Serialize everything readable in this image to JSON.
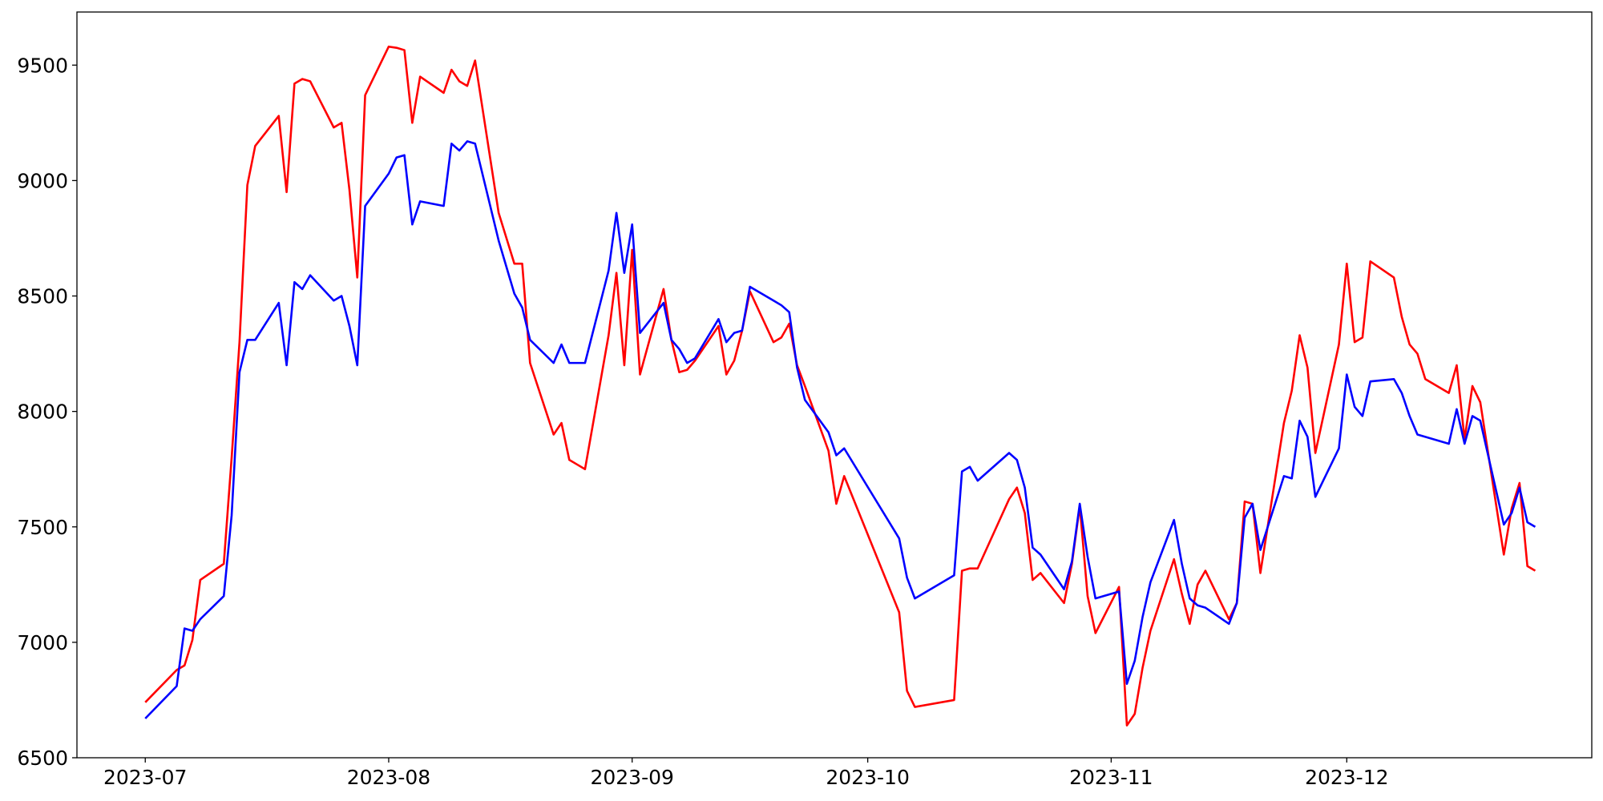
{
  "chart_data": {
    "type": "line",
    "x": [
      19539,
      19543,
      19544,
      19545,
      19546,
      19549,
      19550,
      19551,
      19552,
      19553,
      19556,
      19557,
      19558,
      19559,
      19560,
      19563,
      19564,
      19565,
      19566,
      19567,
      19570,
      19571,
      19572,
      19573,
      19574,
      19577,
      19578,
      19579,
      19580,
      19581,
      19584,
      19586,
      19587,
      19588,
      19591,
      19592,
      19593,
      19594,
      19595,
      19598,
      19599,
      19600,
      19601,
      19602,
      19605,
      19606,
      19607,
      19608,
      19609,
      19612,
      19613,
      19614,
      19615,
      19616,
      19619,
      19620,
      19621,
      19622,
      19623,
      19626,
      19627,
      19628,
      19635,
      19636,
      19637,
      19642,
      19643,
      19644,
      19645,
      19649,
      19650,
      19651,
      19652,
      19653,
      19656,
      19657,
      19658,
      19659,
      19660,
      19663,
      19664,
      19665,
      19666,
      19667,
      19670,
      19671,
      19672,
      19673,
      19674,
      19677,
      19678,
      19679,
      19680,
      19681,
      19684,
      19685,
      19686,
      19687,
      19688,
      19691,
      19692,
      19693,
      19694,
      19695,
      19698,
      19699,
      19700,
      19701,
      19702,
      19705,
      19706,
      19707,
      19708,
      19709,
      19712,
      19713,
      19714,
      19715,
      19716
    ],
    "series": [
      {
        "color": "#ff0000",
        "values": [
          6740,
          6880,
          6900,
          7010,
          7270,
          7340,
          7800,
          8300,
          8980,
          9150,
          9280,
          8950,
          9420,
          9440,
          9430,
          9230,
          9250,
          8960,
          8580,
          9370,
          9580,
          9575,
          9565,
          9250,
          9450,
          9380,
          9480,
          9430,
          9410,
          9520,
          8860,
          8640,
          8640,
          8210,
          7900,
          7950,
          7790,
          7770,
          7750,
          8330,
          8600,
          8200,
          8700,
          8160,
          8530,
          8310,
          8170,
          8180,
          8220,
          8370,
          8160,
          8220,
          8350,
          8520,
          8300,
          8320,
          8380,
          8200,
          8110,
          7830,
          7600,
          7720,
          7130,
          6790,
          6720,
          6750,
          7310,
          7320,
          7320,
          7620,
          7670,
          7560,
          7270,
          7300,
          7170,
          7340,
          7590,
          7200,
          7040,
          7240,
          6640,
          6690,
          6890,
          7050,
          7360,
          7210,
          7080,
          7250,
          7310,
          7100,
          7170,
          7610,
          7600,
          7300,
          7950,
          8090,
          8330,
          8190,
          7820,
          8290,
          8640,
          8300,
          8320,
          8650,
          8580,
          8410,
          8290,
          8250,
          8140,
          8080,
          8200,
          7880,
          8110,
          8040,
          7380,
          7580,
          7690,
          7330,
          7310
        ]
      },
      {
        "color": "#0000ff",
        "values": [
          6670,
          6810,
          7060,
          7050,
          7100,
          7200,
          7550,
          8170,
          8310,
          8310,
          8470,
          8200,
          8560,
          8530,
          8590,
          8480,
          8500,
          8370,
          8200,
          8890,
          9030,
          9100,
          9110,
          8810,
          8910,
          8890,
          9160,
          9130,
          9170,
          9160,
          8740,
          8510,
          8450,
          8310,
          8210,
          8290,
          8210,
          8210,
          8210,
          8610,
          8860,
          8600,
          8810,
          8340,
          8470,
          8310,
          8270,
          8210,
          8230,
          8400,
          8300,
          8340,
          8350,
          8540,
          8480,
          8460,
          8430,
          8190,
          8050,
          7910,
          7810,
          7840,
          7450,
          7280,
          7190,
          7290,
          7740,
          7760,
          7700,
          7820,
          7790,
          7670,
          7410,
          7380,
          7230,
          7350,
          7600,
          7370,
          7190,
          7220,
          6820,
          6920,
          7110,
          7260,
          7530,
          7340,
          7190,
          7160,
          7150,
          7080,
          7170,
          7540,
          7600,
          7400,
          7720,
          7710,
          7960,
          7890,
          7630,
          7840,
          8160,
          8020,
          7980,
          8130,
          8140,
          8080,
          7980,
          7900,
          7890,
          7860,
          8010,
          7860,
          7980,
          7960,
          7510,
          7560,
          7670,
          7520,
          7500
        ]
      }
    ],
    "xlim": [
      19530.3,
      19723.2
    ],
    "xticks": [
      {
        "value": 19539,
        "label": "2023-07"
      },
      {
        "value": 19570,
        "label": "2023-08"
      },
      {
        "value": 19601,
        "label": "2023-09"
      },
      {
        "value": 19631,
        "label": "2023-10"
      },
      {
        "value": 19662,
        "label": "2023-11"
      },
      {
        "value": 19692,
        "label": "2023-12"
      }
    ],
    "ylim": [
      6500,
      9730
    ],
    "yticks": [
      6500,
      7000,
      7500,
      8000,
      8500,
      9000,
      9500
    ],
    "grid": false
  }
}
